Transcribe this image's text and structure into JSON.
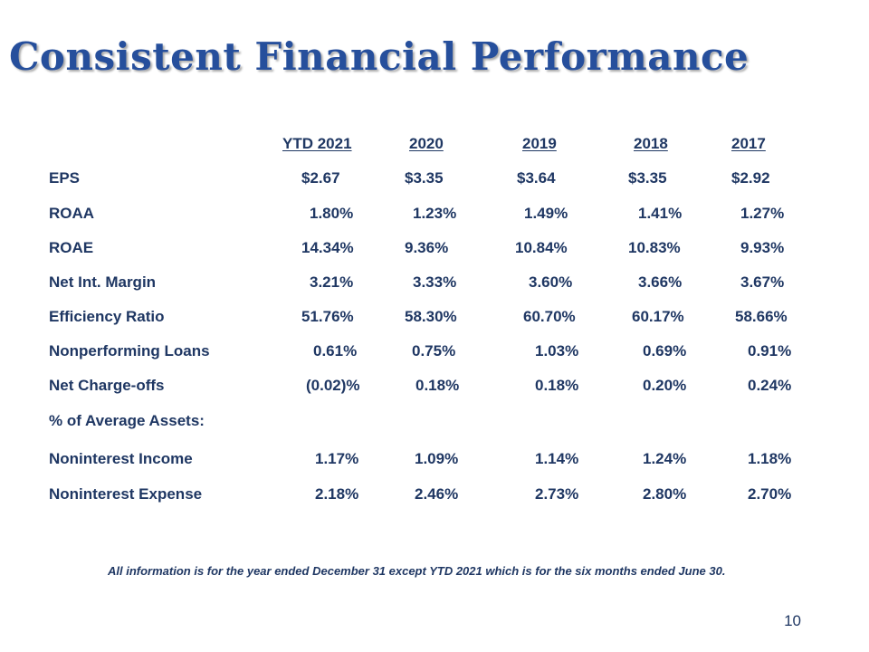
{
  "slide": {
    "title": "Consistent Financial Performance",
    "footnote": "All information is for the year ended December 31 except YTD 2021 which is for the six months ended June 30.",
    "page_number": "10"
  },
  "table": {
    "headers": [
      "YTD 2021",
      "2020",
      "2019",
      "2018",
      "2017"
    ],
    "rows": [
      {
        "label": "EPS",
        "values": [
          "$2.67",
          "$3.35",
          "$3.64",
          "$3.35",
          "$2.92"
        ]
      },
      {
        "label": "ROAA",
        "values": [
          "1.80%",
          "1.23%",
          "1.49%",
          "1.41%",
          "1.27%"
        ]
      },
      {
        "label": "ROAE",
        "values": [
          "14.34%",
          "9.36%",
          "10.84%",
          "10.83%",
          "9.93%"
        ]
      },
      {
        "label": "Net Int. Margin",
        "values": [
          "3.21%",
          "3.33%",
          "3.60%",
          "3.66%",
          "3.67%"
        ]
      },
      {
        "label": "Efficiency Ratio",
        "values": [
          "51.76%",
          "58.30%",
          "60.70%",
          "60.17%",
          "58.66%"
        ]
      },
      {
        "label": "Nonperforming Loans",
        "values": [
          "0.61%",
          "0.75%",
          "1.03%",
          "0.69%",
          "0.91%"
        ]
      },
      {
        "label": "Net Charge-offs",
        "values": [
          "(0.02)%",
          "0.18%",
          "0.18%",
          "0.20%",
          "0.24%"
        ]
      },
      {
        "label": "% of Average Assets:",
        "values": [
          "",
          "",
          "",
          "",
          ""
        ]
      },
      {
        "label": "Noninterest Income",
        "values": [
          "1.17%",
          "1.09%",
          "1.14%",
          "1.24%",
          "1.18%"
        ]
      },
      {
        "label": "Noninterest Expense",
        "values": [
          "2.18%",
          "2.46%",
          "2.73%",
          "2.80%",
          "2.70%"
        ]
      }
    ]
  }
}
